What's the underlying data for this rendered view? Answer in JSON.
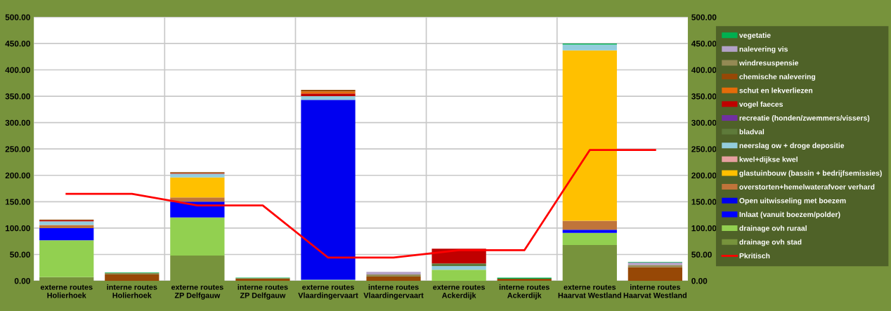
{
  "chart_data": {
    "type": "bar",
    "stacked": true,
    "categories": [
      "externe routes\nHolierhoek",
      "interne routes\nHolierhoek",
      "externe routes\nZP Delfgauw",
      "interne routes\nZP Delfgauw",
      "externe routes\nVlaardingervaart",
      "interne routes\nVlaardingervaart",
      "externe routes\nAckerdijk",
      "interne routes\nAckerdijk",
      "externe routes\nHaarvat Westland",
      "interne routes\nHaarvat Westland"
    ],
    "series": [
      {
        "name": "drainage ovh stad",
        "color": "#77933c",
        "values": [
          7,
          0,
          48,
          0,
          0,
          0,
          0,
          0,
          68,
          0
        ]
      },
      {
        "name": "drainage ovh ruraal",
        "color": "#92d050",
        "values": [
          70,
          0,
          72,
          0,
          2,
          0,
          21,
          0,
          23,
          0
        ]
      },
      {
        "name": "Inlaat (vanuit boezem/polder)",
        "color": "#0000ff",
        "values": [
          23,
          0,
          30,
          0,
          0,
          0,
          0,
          0,
          6,
          0
        ]
      },
      {
        "name": "Open uitwisseling met boezem",
        "color": "#0000f0",
        "values": [
          0,
          0,
          0,
          0,
          341,
          0,
          0,
          0,
          0,
          0
        ]
      },
      {
        "name": "overstorten+hemelwaterafvoer verhard",
        "color": "#c0743a",
        "values": [
          6,
          0,
          8,
          0,
          0,
          0,
          0,
          0,
          17,
          0
        ]
      },
      {
        "name": "glastuinbouw (bassin + bedrijfsemissies)",
        "color": "#ffc000",
        "values": [
          0,
          0,
          38,
          0,
          0,
          0,
          0,
          0,
          323,
          0
        ]
      },
      {
        "name": "kwel+dijkse kwel",
        "color": "#e6a0a0",
        "values": [
          0,
          0,
          0,
          0,
          0,
          0,
          0,
          0,
          0,
          0
        ]
      },
      {
        "name": "neerslag ow + droge depositie",
        "color": "#93cddd",
        "values": [
          7,
          null,
          7,
          0,
          7,
          0,
          7,
          0,
          11,
          0
        ]
      },
      {
        "name": "bladval",
        "color": "#5e7a3a",
        "values": [
          0,
          0,
          0,
          0,
          0,
          0,
          5,
          0,
          0,
          0
        ]
      },
      {
        "name": "recreatie (honden/zwemmers/vissers)",
        "color": "#7030a0",
        "values": [
          0,
          0,
          0,
          0,
          0,
          0,
          0,
          0,
          0,
          0
        ]
      },
      {
        "name": "vogel faeces",
        "color": "#c00000",
        "values": [
          2,
          0,
          1,
          0,
          5,
          0,
          28,
          0,
          0,
          0
        ]
      },
      {
        "name": "schut en lekverliezen",
        "color": "#e46c0a",
        "values": [
          0,
          0,
          0,
          0,
          4,
          0,
          0,
          0,
          0,
          0
        ]
      },
      {
        "name": "chemische nalevering",
        "color": "#974806",
        "values": [
          1,
          12,
          2,
          4,
          3,
          8,
          0,
          4,
          0,
          26
        ]
      },
      {
        "name": "windresuspensie",
        "color": "#948a54",
        "values": [
          0,
          3,
          0,
          1,
          0,
          4,
          0,
          0,
          0,
          4
        ]
      },
      {
        "name": "nalevering vis",
        "color": "#b3a2c7",
        "values": [
          0,
          0,
          0,
          0,
          0,
          5,
          0,
          0,
          0,
          5
        ]
      },
      {
        "name": "vegetatie",
        "color": "#00b050",
        "values": [
          0,
          1,
          0,
          1,
          0,
          null,
          0,
          2,
          2,
          1
        ]
      },
      {
        "name": "Pkritisch",
        "type": "line",
        "color": "#ff0000",
        "values": [
          165,
          165,
          143,
          143,
          44,
          44,
          58,
          58,
          248,
          248
        ]
      }
    ],
    "ylim": [
      0,
      500
    ],
    "yticks": [
      {
        "value": 0,
        "label": "0.00"
      },
      {
        "value": 50,
        "label": "50.00"
      },
      {
        "value": 100,
        "label": "100.00"
      },
      {
        "value": 150,
        "label": "150.00"
      },
      {
        "value": 200,
        "label": "200.00"
      },
      {
        "value": 250,
        "label": "250.00"
      },
      {
        "value": 300,
        "label": "300.00"
      },
      {
        "value": 350,
        "label": "350.00"
      },
      {
        "value": 400,
        "label": "400.00"
      },
      {
        "value": 450,
        "label": "450.00"
      },
      {
        "value": 500,
        "label": "500.00"
      }
    ],
    "y2lim": [
      0,
      500
    ],
    "y2ticks": [
      {
        "value": 0,
        "label": "0.00"
      },
      {
        "value": 50,
        "label": "50.00"
      },
      {
        "value": 100,
        "label": "100.00"
      },
      {
        "value": 150,
        "label": "150.00"
      },
      {
        "value": 200,
        "label": "200.00"
      },
      {
        "value": 250,
        "label": "250.00"
      },
      {
        "value": 300,
        "label": "300.00"
      },
      {
        "value": 350,
        "label": "350.00"
      },
      {
        "value": 400,
        "label": "400.00"
      },
      {
        "value": 450,
        "label": "450.00"
      },
      {
        "value": 500,
        "label": "500.00"
      }
    ],
    "grid": true,
    "legend": "right"
  }
}
